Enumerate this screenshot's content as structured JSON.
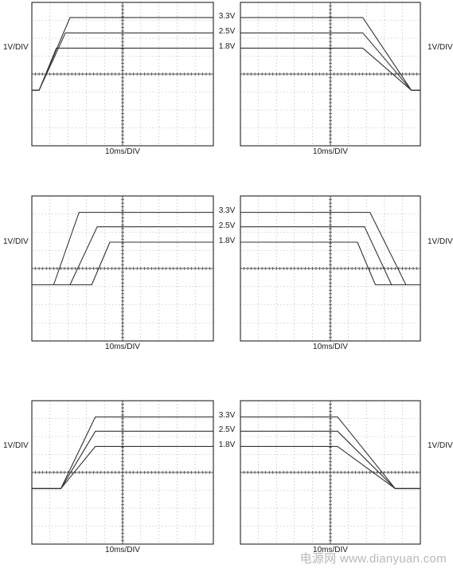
{
  "watermark": "电源网 www.dianyuan.com",
  "colors": {
    "trace": "#333333",
    "frame": "#222222",
    "grid": "#9a9a9a"
  },
  "chart_data": [
    {
      "type": "line",
      "row": 1,
      "column": "left",
      "ylabel": "1V/DIV",
      "xlabel": "10ms/DIV",
      "xlim": [
        0,
        10
      ],
      "ylim": [
        0,
        8
      ],
      "series": [
        {
          "name": "3.3V",
          "x": [
            0,
            0.4,
            2.1,
            10
          ],
          "y": [
            3.1,
            3.1,
            7.15,
            7.15
          ]
        },
        {
          "name": "2.5V",
          "x": [
            0,
            0.4,
            1.85,
            10
          ],
          "y": [
            3.1,
            3.1,
            6.3,
            6.3
          ]
        },
        {
          "name": "1.8V",
          "x": [
            0,
            0.4,
            1.35,
            10
          ],
          "y": [
            3.1,
            3.1,
            5.45,
            5.45
          ]
        }
      ]
    },
    {
      "type": "line",
      "row": 1,
      "column": "right",
      "ylabel": "1V/DIV",
      "xlabel": "10ms/DIV",
      "xlim": [
        0,
        10
      ],
      "ylim": [
        0,
        8
      ],
      "series": [
        {
          "name": "3.3V",
          "x": [
            0,
            6.8,
            9.5,
            10
          ],
          "y": [
            7.15,
            7.15,
            3.1,
            3.1
          ]
        },
        {
          "name": "2.5V",
          "x": [
            0,
            6.8,
            9.5,
            10
          ],
          "y": [
            6.3,
            6.3,
            3.1,
            3.1
          ]
        },
        {
          "name": "1.8V",
          "x": [
            0,
            6.8,
            9.5,
            10
          ],
          "y": [
            5.45,
            5.45,
            3.1,
            3.1
          ]
        }
      ]
    },
    {
      "type": "line",
      "row": 2,
      "column": "left",
      "ylabel": "1V/DIV",
      "xlabel": "10ms/DIV",
      "xlim": [
        0,
        10
      ],
      "ylim": [
        0,
        8
      ],
      "series": [
        {
          "name": "3.3V",
          "x": [
            0,
            1.2,
            2.6,
            10
          ],
          "y": [
            3.1,
            3.1,
            7.1,
            7.1
          ]
        },
        {
          "name": "2.5V",
          "x": [
            0,
            2.1,
            3.6,
            10
          ],
          "y": [
            3.1,
            3.1,
            6.3,
            6.3
          ]
        },
        {
          "name": "1.8V",
          "x": [
            0,
            3.3,
            4.3,
            10
          ],
          "y": [
            3.1,
            3.1,
            5.45,
            5.45
          ]
        }
      ]
    },
    {
      "type": "line",
      "row": 2,
      "column": "right",
      "ylabel": "1V/DIV",
      "xlabel": "10ms/DIV",
      "xlim": [
        0,
        10
      ],
      "ylim": [
        0,
        8
      ],
      "series": [
        {
          "name": "3.3V",
          "x": [
            0,
            7.2,
            9.2,
            10
          ],
          "y": [
            7.1,
            7.1,
            3.1,
            3.1
          ]
        },
        {
          "name": "2.5V",
          "x": [
            0,
            6.9,
            8.4,
            10
          ],
          "y": [
            6.3,
            6.3,
            3.1,
            3.1
          ]
        },
        {
          "name": "1.8V",
          "x": [
            0,
            6.5,
            7.5,
            10
          ],
          "y": [
            5.45,
            5.45,
            3.1,
            3.1
          ]
        }
      ]
    },
    {
      "type": "line",
      "row": 3,
      "column": "left",
      "ylabel": "1V/DIV",
      "xlabel": "10ms/DIV",
      "xlim": [
        0,
        10
      ],
      "ylim": [
        0,
        8
      ],
      "series": [
        {
          "name": "3.3V",
          "x": [
            0,
            1.6,
            3.5,
            10
          ],
          "y": [
            3.1,
            3.1,
            7.1,
            7.1
          ]
        },
        {
          "name": "2.5V",
          "x": [
            0,
            1.6,
            3.5,
            10
          ],
          "y": [
            3.1,
            3.1,
            6.3,
            6.3
          ]
        },
        {
          "name": "1.8V",
          "x": [
            0,
            1.6,
            3.5,
            10
          ],
          "y": [
            3.1,
            3.1,
            5.45,
            5.45
          ]
        }
      ]
    },
    {
      "type": "line",
      "row": 3,
      "column": "right",
      "ylabel": "1V/DIV",
      "xlabel": "10ms/DIV",
      "xlim": [
        0,
        10
      ],
      "ylim": [
        0,
        8
      ],
      "series": [
        {
          "name": "3.3V",
          "x": [
            0,
            5.4,
            8.6,
            10
          ],
          "y": [
            7.1,
            7.1,
            3.1,
            3.1
          ]
        },
        {
          "name": "2.5V",
          "x": [
            0,
            5.4,
            8.6,
            10
          ],
          "y": [
            6.3,
            6.3,
            3.1,
            3.1
          ]
        },
        {
          "name": "1.8V",
          "x": [
            0,
            5.4,
            8.6,
            10
          ],
          "y": [
            5.45,
            5.45,
            3.1,
            3.1
          ]
        }
      ]
    }
  ]
}
